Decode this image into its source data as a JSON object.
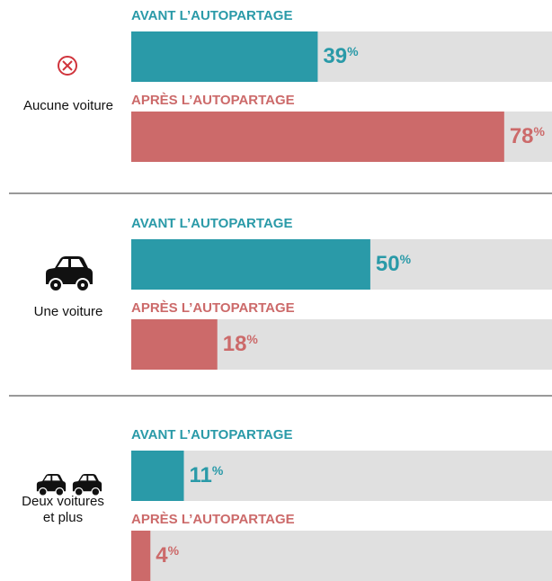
{
  "chart_data": {
    "type": "bar",
    "categories": [
      "Aucune voiture",
      "Une voiture",
      "Deux voitures et plus"
    ],
    "series": [
      {
        "name": "AVANT L’AUTOPARTAGE",
        "color": "#2a9aa8",
        "values": [
          39,
          50,
          11
        ],
        "value_labels": [
          "39%",
          "50%",
          "11%"
        ]
      },
      {
        "name": "APRÈS L’AUTOPARTAGE",
        "color": "#cc6a6a",
        "values": [
          78,
          18,
          4
        ],
        "value_labels": [
          "78%",
          "18%",
          "4%"
        ]
      }
    ],
    "xlim": [
      0,
      88
    ],
    "track_color": "#e0e0e0"
  }
}
